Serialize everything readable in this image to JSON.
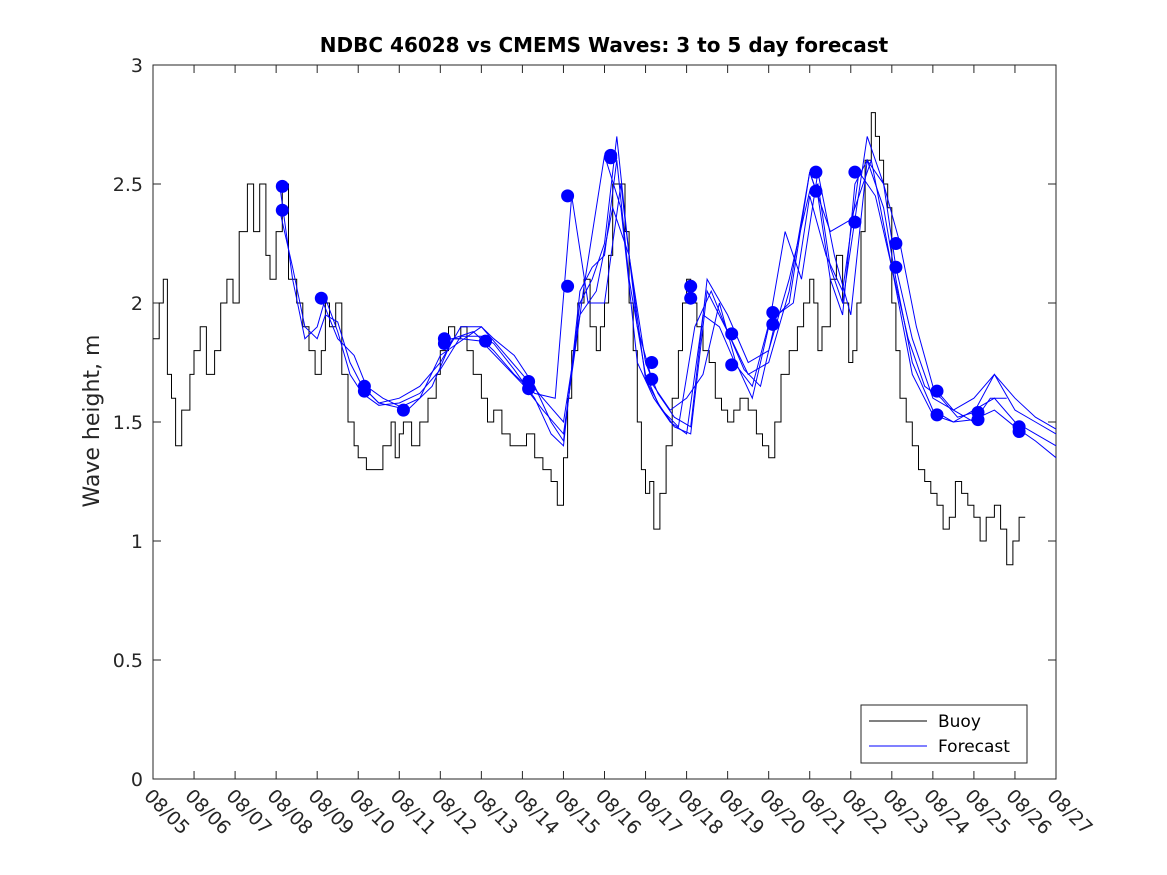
{
  "chart_data": {
    "type": "line",
    "title": "NDBC 46028 vs CMEMS Waves: 3 to 5 day forecast",
    "xlabel": "",
    "ylabel": "Wave height, m",
    "xlim": [
      5,
      27
    ],
    "ylim": [
      0,
      3
    ],
    "yticks": [
      0,
      0.5,
      1,
      1.5,
      2,
      2.5,
      3
    ],
    "ytick_labels": [
      "0",
      "0.5",
      "1",
      "1.5",
      "2",
      "2.5",
      "3"
    ],
    "xticks": [
      5,
      6,
      7,
      8,
      9,
      10,
      11,
      12,
      13,
      14,
      15,
      16,
      17,
      18,
      19,
      20,
      21,
      22,
      23,
      24,
      25,
      26,
      27
    ],
    "xtick_labels": [
      "08/05",
      "08/06",
      "08/07",
      "08/08",
      "08/09",
      "08/10",
      "08/11",
      "08/12",
      "08/13",
      "08/14",
      "08/15",
      "08/16",
      "08/17",
      "08/18",
      "08/19",
      "08/20",
      "08/21",
      "08/22",
      "08/23",
      "08/24",
      "08/25",
      "08/26",
      "08/27"
    ],
    "grid": false,
    "legend": {
      "position": "bottom-right",
      "entries": [
        "Buoy",
        "Forecast"
      ]
    },
    "colors": {
      "buoy": "#000000",
      "forecast": "#0000ff",
      "markers": "#0000ff"
    },
    "buoy": {
      "name": "Buoy",
      "x": [
        5.0,
        5.15,
        5.25,
        5.35,
        5.45,
        5.55,
        5.7,
        5.9,
        6.0,
        6.15,
        6.3,
        6.5,
        6.65,
        6.8,
        6.95,
        7.1,
        7.3,
        7.45,
        7.6,
        7.75,
        7.85,
        8.0,
        8.15,
        8.3,
        8.5,
        8.65,
        8.8,
        8.95,
        9.1,
        9.2,
        9.3,
        9.45,
        9.6,
        9.75,
        9.9,
        10.0,
        10.2,
        10.4,
        10.6,
        10.8,
        10.9,
        11.0,
        11.1,
        11.3,
        11.5,
        11.7,
        11.9,
        12.0,
        12.2,
        12.35,
        12.5,
        12.65,
        12.8,
        13.0,
        13.15,
        13.3,
        13.5,
        13.7,
        13.9,
        14.1,
        14.3,
        14.5,
        14.7,
        14.85,
        15.0,
        15.1,
        15.2,
        15.35,
        15.5,
        15.65,
        15.8,
        15.9,
        16.0,
        16.1,
        16.2,
        16.35,
        16.5,
        16.6,
        16.7,
        16.8,
        16.9,
        17.0,
        17.1,
        17.2,
        17.35,
        17.5,
        17.65,
        17.8,
        17.9,
        18.0,
        18.1,
        18.25,
        18.4,
        18.55,
        18.7,
        18.85,
        19.0,
        19.15,
        19.3,
        19.5,
        19.7,
        19.85,
        20.0,
        20.15,
        20.3,
        20.5,
        20.7,
        20.85,
        21.0,
        21.1,
        21.2,
        21.3,
        21.5,
        21.65,
        21.8,
        21.95,
        22.05,
        22.15,
        22.25,
        22.35,
        22.5,
        22.6,
        22.7,
        22.8,
        22.9,
        23.0,
        23.1,
        23.2,
        23.35,
        23.5,
        23.65,
        23.8,
        23.95,
        24.1,
        24.25,
        24.4,
        24.55,
        24.7,
        24.85,
        25.0,
        25.15,
        25.3,
        25.5,
        25.65,
        25.8,
        25.95,
        26.1,
        26.25
      ],
      "values": [
        1.85,
        2.0,
        2.1,
        1.7,
        1.6,
        1.4,
        1.55,
        1.7,
        1.8,
        1.9,
        1.7,
        1.8,
        2.0,
        2.1,
        2.0,
        2.3,
        2.5,
        2.3,
        2.5,
        2.2,
        2.1,
        2.3,
        2.5,
        2.1,
        2.0,
        1.9,
        1.8,
        1.7,
        1.8,
        2.0,
        1.9,
        2.0,
        1.7,
        1.5,
        1.4,
        1.35,
        1.3,
        1.3,
        1.4,
        1.5,
        1.35,
        1.45,
        1.5,
        1.4,
        1.5,
        1.6,
        1.7,
        1.8,
        1.9,
        1.85,
        1.9,
        1.8,
        1.7,
        1.6,
        1.5,
        1.55,
        1.45,
        1.4,
        1.4,
        1.45,
        1.35,
        1.3,
        1.25,
        1.15,
        1.35,
        1.6,
        1.8,
        2.0,
        2.1,
        1.9,
        1.8,
        1.9,
        2.0,
        2.2,
        2.5,
        2.5,
        2.3,
        2.0,
        1.8,
        1.5,
        1.3,
        1.2,
        1.25,
        1.05,
        1.2,
        1.4,
        1.6,
        1.8,
        2.0,
        2.1,
        2.0,
        1.9,
        1.8,
        1.75,
        1.6,
        1.55,
        1.5,
        1.55,
        1.6,
        1.55,
        1.45,
        1.4,
        1.35,
        1.5,
        1.7,
        1.8,
        1.9,
        2.0,
        2.1,
        2.0,
        1.8,
        1.9,
        2.1,
        2.2,
        2.0,
        1.75,
        1.8,
        2.0,
        2.3,
        2.6,
        2.8,
        2.7,
        2.6,
        2.5,
        2.4,
        2.0,
        1.8,
        1.6,
        1.5,
        1.4,
        1.3,
        1.25,
        1.2,
        1.15,
        1.05,
        1.1,
        1.25,
        1.2,
        1.15,
        1.1,
        1.0,
        1.1,
        1.15,
        1.05,
        0.9,
        1.0,
        1.1,
        1.1
      ]
    },
    "forecast_series": [
      {
        "name": "Forecast",
        "x": [
          8.1,
          8.4,
          8.7,
          9.0,
          9.2,
          9.5,
          9.8,
          10.1,
          10.5,
          11.0,
          11.5,
          12.0,
          12.5,
          13.0,
          13.3,
          13.8,
          14.3,
          14.7,
          15.0,
          15.4,
          15.7,
          16.0,
          16.3,
          16.6,
          17.0,
          17.3,
          17.7,
          18.1,
          18.5,
          19.0,
          19.5,
          20.0,
          20.5,
          21.0,
          21.2,
          21.5,
          21.8,
          22.1,
          22.4,
          22.8,
          23.1,
          23.5,
          24.0,
          24.5,
          25.0,
          25.5,
          26.0,
          26.5,
          27.0
        ],
        "values": [
          2.48,
          2.1,
          1.85,
          1.9,
          2.02,
          1.88,
          1.7,
          1.62,
          1.57,
          1.58,
          1.62,
          1.72,
          1.86,
          1.86,
          1.83,
          1.72,
          1.6,
          1.45,
          1.4,
          2.05,
          2.15,
          2.2,
          2.6,
          2.1,
          1.7,
          1.58,
          1.48,
          1.45,
          2.05,
          1.88,
          1.7,
          1.75,
          2.05,
          2.55,
          2.45,
          2.1,
          1.95,
          2.5,
          2.6,
          2.4,
          2.1,
          1.75,
          1.55,
          1.5,
          1.55,
          1.6,
          1.5,
          1.45,
          1.4
        ]
      },
      {
        "name": "Forecast",
        "x": [
          8.1,
          8.4,
          8.7,
          9.0,
          9.2,
          9.5,
          9.8,
          10.1,
          10.5,
          11.0,
          11.5,
          12.0,
          12.5,
          13.0,
          13.3,
          13.8,
          14.3,
          14.7,
          15.0,
          15.4,
          15.7,
          16.0,
          16.3,
          16.6,
          17.0,
          17.3,
          17.7,
          18.1,
          18.5,
          19.0,
          19.5,
          20.0,
          20.5,
          21.0,
          21.2,
          21.5,
          21.8,
          22.1,
          22.4,
          22.8,
          23.1,
          23.5,
          24.0,
          24.5,
          25.0,
          25.5,
          26.0,
          26.5,
          27.0
        ],
        "values": [
          2.38,
          2.15,
          1.9,
          1.85,
          1.95,
          1.92,
          1.75,
          1.65,
          1.58,
          1.6,
          1.65,
          1.75,
          1.9,
          1.9,
          1.85,
          1.78,
          1.65,
          1.5,
          1.42,
          2.0,
          2.1,
          2.25,
          2.7,
          2.2,
          1.75,
          1.62,
          1.52,
          1.48,
          2.1,
          1.95,
          1.75,
          1.8,
          2.1,
          2.47,
          2.5,
          2.15,
          2.0,
          2.35,
          2.7,
          2.5,
          2.15,
          1.85,
          1.6,
          1.55,
          1.6,
          1.7,
          1.55,
          1.5,
          1.45
        ]
      },
      {
        "name": "Forecast",
        "x": [
          9.1,
          9.5,
          9.9,
          10.2,
          10.6,
          11.2,
          11.8,
          12.3,
          12.8,
          13.3,
          13.8,
          14.3,
          14.8,
          15.2,
          15.6,
          16.0,
          16.4,
          16.8,
          17.2,
          17.6,
          18.0,
          18.4,
          18.8,
          19.2,
          19.6,
          20.0,
          20.4,
          20.8,
          21.2,
          21.6,
          22.0,
          22.4,
          22.8,
          23.2,
          23.6,
          24.0,
          24.5,
          25.0,
          25.4,
          25.8
        ],
        "values": [
          2.02,
          1.85,
          1.78,
          1.65,
          1.6,
          1.55,
          1.65,
          1.85,
          1.88,
          1.8,
          1.7,
          1.62,
          1.6,
          2.45,
          2.0,
          2.0,
          2.5,
          1.9,
          1.65,
          1.55,
          1.6,
          1.7,
          2.0,
          1.75,
          1.6,
          1.9,
          2.3,
          2.1,
          2.55,
          2.2,
          1.95,
          2.6,
          2.5,
          2.25,
          1.9,
          1.65,
          1.55,
          1.5,
          1.6,
          1.6
        ]
      },
      {
        "name": "Forecast",
        "x": [
          10.1,
          10.5,
          11.0,
          11.5,
          12.0,
          12.5,
          13.0,
          13.5,
          14.0,
          14.5,
          15.0,
          15.4,
          15.8,
          16.2,
          16.6,
          17.0,
          17.4,
          17.8,
          18.2,
          18.6,
          19.0,
          19.4,
          19.8,
          20.2,
          20.6,
          21.0,
          21.4,
          21.8,
          22.2,
          22.6,
          23.0,
          23.4,
          23.8,
          24.2,
          24.6,
          25.0,
          25.5,
          26.0,
          26.5,
          27.0
        ],
        "values": [
          1.65,
          1.58,
          1.56,
          1.6,
          1.78,
          1.84,
          1.9,
          1.8,
          1.7,
          1.6,
          1.5,
          1.95,
          2.05,
          2.4,
          2.2,
          1.68,
          1.55,
          1.48,
          1.9,
          2.05,
          1.88,
          1.72,
          1.65,
          1.95,
          2.0,
          2.45,
          2.2,
          2.05,
          2.55,
          2.45,
          2.15,
          1.85,
          1.65,
          1.6,
          1.52,
          1.54,
          1.7,
          1.6,
          1.52,
          1.47
        ]
      },
      {
        "name": "Forecast",
        "x": [
          12.1,
          12.5,
          13.0,
          13.5,
          14.0,
          14.5,
          15.0,
          15.5,
          16.0,
          16.4,
          16.8,
          17.2,
          17.6,
          18.0,
          18.4,
          18.8,
          19.2,
          19.6,
          20.0,
          20.5,
          21.0,
          21.5,
          22.0,
          22.5,
          23.0,
          23.5,
          24.0,
          24.5,
          25.0,
          25.5,
          26.0,
          26.5,
          27.0
        ],
        "values": [
          1.85,
          1.85,
          1.84,
          1.75,
          1.66,
          1.55,
          1.45,
          2.07,
          2.62,
          2.4,
          1.75,
          1.6,
          1.5,
          1.45,
          1.95,
          1.9,
          1.74,
          1.65,
          1.91,
          2.0,
          2.55,
          2.3,
          2.35,
          2.6,
          2.15,
          1.7,
          1.53,
          1.5,
          1.51,
          1.55,
          1.48,
          1.42,
          1.35
        ]
      }
    ],
    "forecast_markers": {
      "name": "Forecast start points",
      "x": [
        8.15,
        8.15,
        9.1,
        10.15,
        10.15,
        11.1,
        12.1,
        12.1,
        13.1,
        14.15,
        14.15,
        15.1,
        15.1,
        16.15,
        16.15,
        17.15,
        17.15,
        18.1,
        18.1,
        19.1,
        19.1,
        20.1,
        20.1,
        21.15,
        21.15,
        22.1,
        22.1,
        23.1,
        23.1,
        24.1,
        24.1,
        25.1,
        25.1,
        26.1,
        26.1
      ],
      "values": [
        2.49,
        2.39,
        2.02,
        1.65,
        1.63,
        1.55,
        1.85,
        1.83,
        1.84,
        1.67,
        1.64,
        2.45,
        2.07,
        2.62,
        2.61,
        1.75,
        1.68,
        2.07,
        2.02,
        1.87,
        1.74,
        1.96,
        1.91,
        2.55,
        2.47,
        2.55,
        2.34,
        2.25,
        2.15,
        1.63,
        1.53,
        1.54,
        1.51,
        1.48,
        1.46
      ]
    }
  }
}
